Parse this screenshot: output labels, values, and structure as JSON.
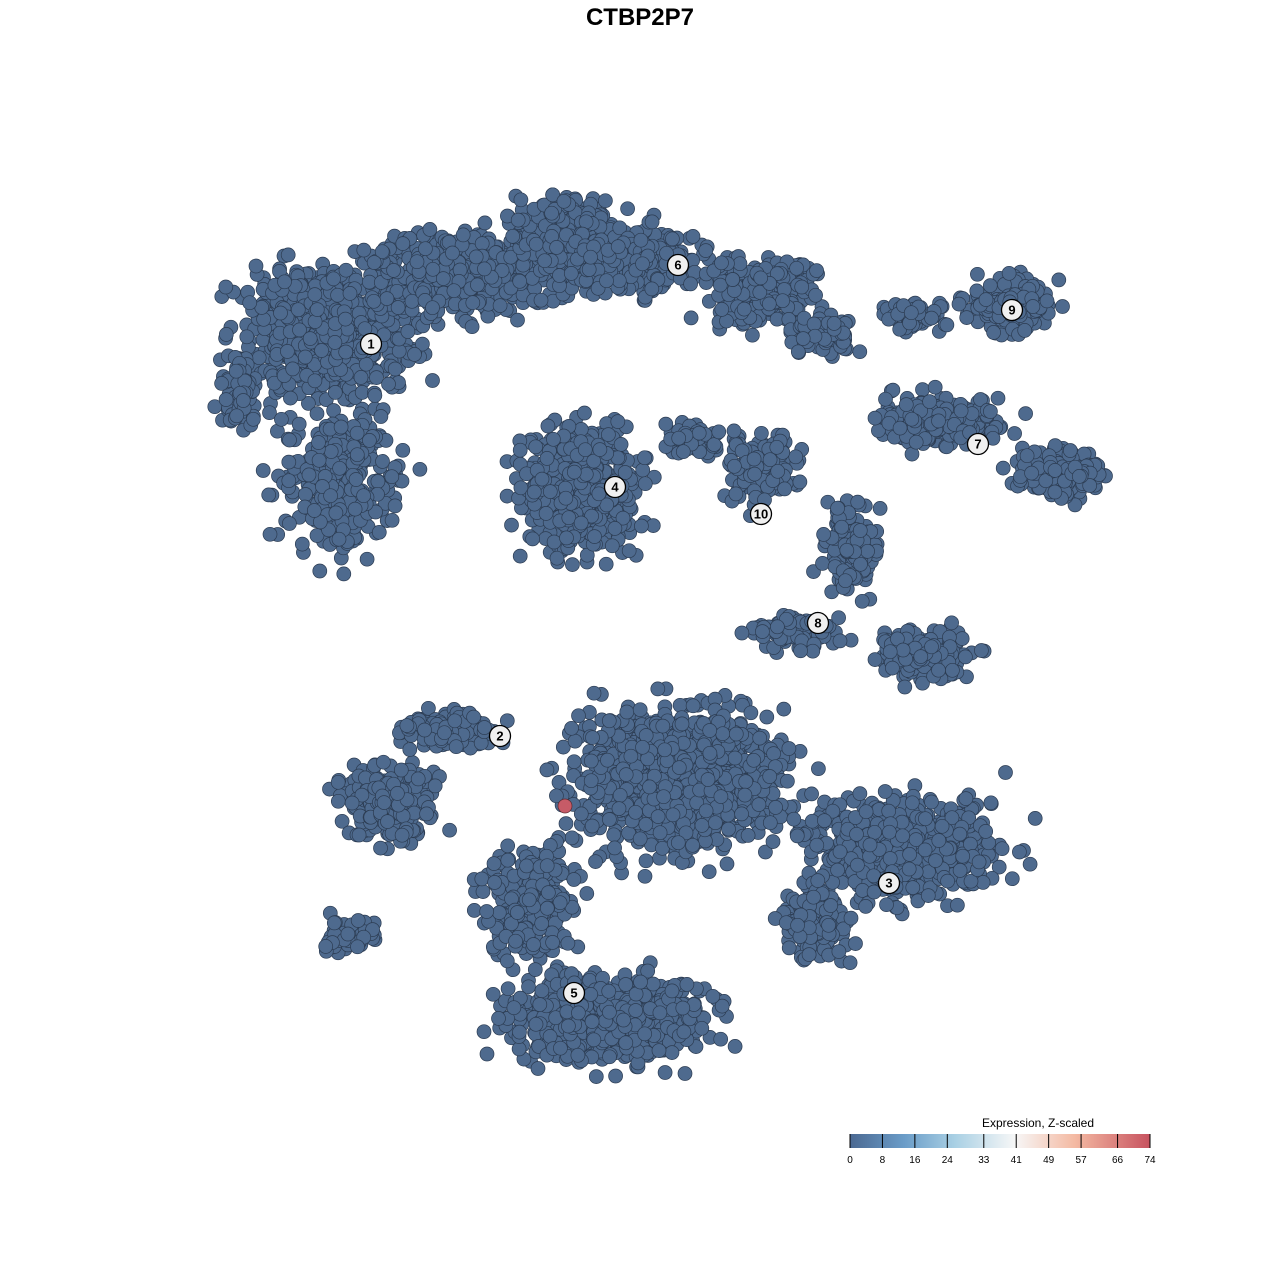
{
  "chart_data": {
    "type": "scatter",
    "title": "CTBP2P7",
    "xlabel": "",
    "ylabel": "",
    "grid": false,
    "axes_visible": false,
    "point_color_default": "#4e6a8e",
    "point_color_high": "#c65b67",
    "cluster_labels": [
      "1",
      "2",
      "3",
      "4",
      "5",
      "6",
      "7",
      "8",
      "9",
      "10"
    ],
    "expressing_cells": [
      {
        "cluster": "2",
        "expression": 74
      }
    ],
    "baseline_expression": 0,
    "legend": {
      "title": "Expression, Z-scaled",
      "placement": "bottom-right",
      "ticks": [
        0,
        8,
        16,
        24,
        33,
        41,
        49,
        57,
        66,
        74
      ],
      "range": [
        0,
        74
      ],
      "colors": [
        "#4b6992",
        "#6a9cc8",
        "#a9d0e4",
        "#f7f7f7",
        "#f4b9a2",
        "#c7525f"
      ]
    }
  }
}
